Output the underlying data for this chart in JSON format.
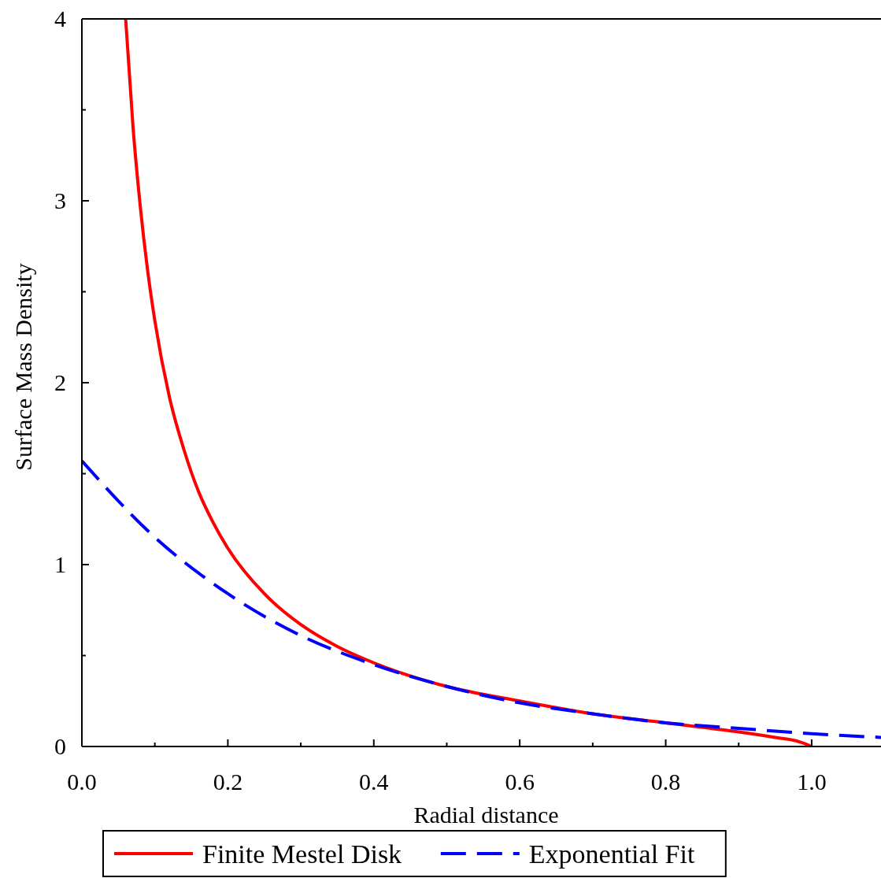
{
  "chart_data": {
    "type": "line",
    "xlabel": "Radial distance",
    "ylabel": "Surface Mass Density",
    "xlim": [
      0,
      1.095
    ],
    "ylim": [
      0,
      4
    ],
    "xticks": [
      {
        "value": 0,
        "label": "0.0"
      },
      {
        "value": 0.1,
        "label": null
      },
      {
        "value": 0.2,
        "label": "0.2"
      },
      {
        "value": 0.3,
        "label": null
      },
      {
        "value": 0.4,
        "label": "0.4"
      },
      {
        "value": 0.5,
        "label": null
      },
      {
        "value": 0.6,
        "label": "0.6"
      },
      {
        "value": 0.7,
        "label": null
      },
      {
        "value": 0.8,
        "label": "0.8"
      },
      {
        "value": 0.9,
        "label": null
      },
      {
        "value": 1,
        "label": "1.0"
      }
    ],
    "yticks": [
      0,
      {
        "value": 0.5,
        "label": null
      },
      1,
      {
        "value": 1.5,
        "label": null
      },
      2,
      {
        "value": 2.5,
        "label": null
      },
      3,
      {
        "value": 3.5,
        "label": null
      },
      4
    ],
    "legend": "bottom",
    "grid": false,
    "series": [
      {
        "name": "Finite Mestel Disk",
        "color": "#ff0000",
        "line_style": "solid",
        "x": [
          0.06,
          0.07,
          0.08,
          0.09,
          0.1,
          0.12,
          0.14,
          0.16,
          0.18,
          0.2,
          0.25,
          0.3,
          0.35,
          0.4,
          0.5,
          0.6,
          0.7,
          0.8,
          0.9,
          0.95,
          0.98,
          1.0
        ],
        "values": [
          4.0,
          3.41,
          2.97,
          2.62,
          2.34,
          1.92,
          1.63,
          1.4,
          1.23,
          1.09,
          0.84,
          0.67,
          0.55,
          0.46,
          0.33,
          0.25,
          0.18,
          0.13,
          0.08,
          0.05,
          0.03,
          0
        ]
      },
      {
        "name": "Exponential Fit",
        "color": "#0000ff",
        "line_style": "dashed",
        "x": [
          0,
          0.1,
          0.2,
          0.3,
          0.4,
          0.5,
          0.6,
          0.7,
          0.8,
          0.9,
          1.0,
          1.095
        ],
        "values": [
          1.57,
          1.15,
          0.84,
          0.61,
          0.45,
          0.33,
          0.24,
          0.18,
          0.13,
          0.1,
          0.07,
          0.05
        ]
      }
    ]
  }
}
